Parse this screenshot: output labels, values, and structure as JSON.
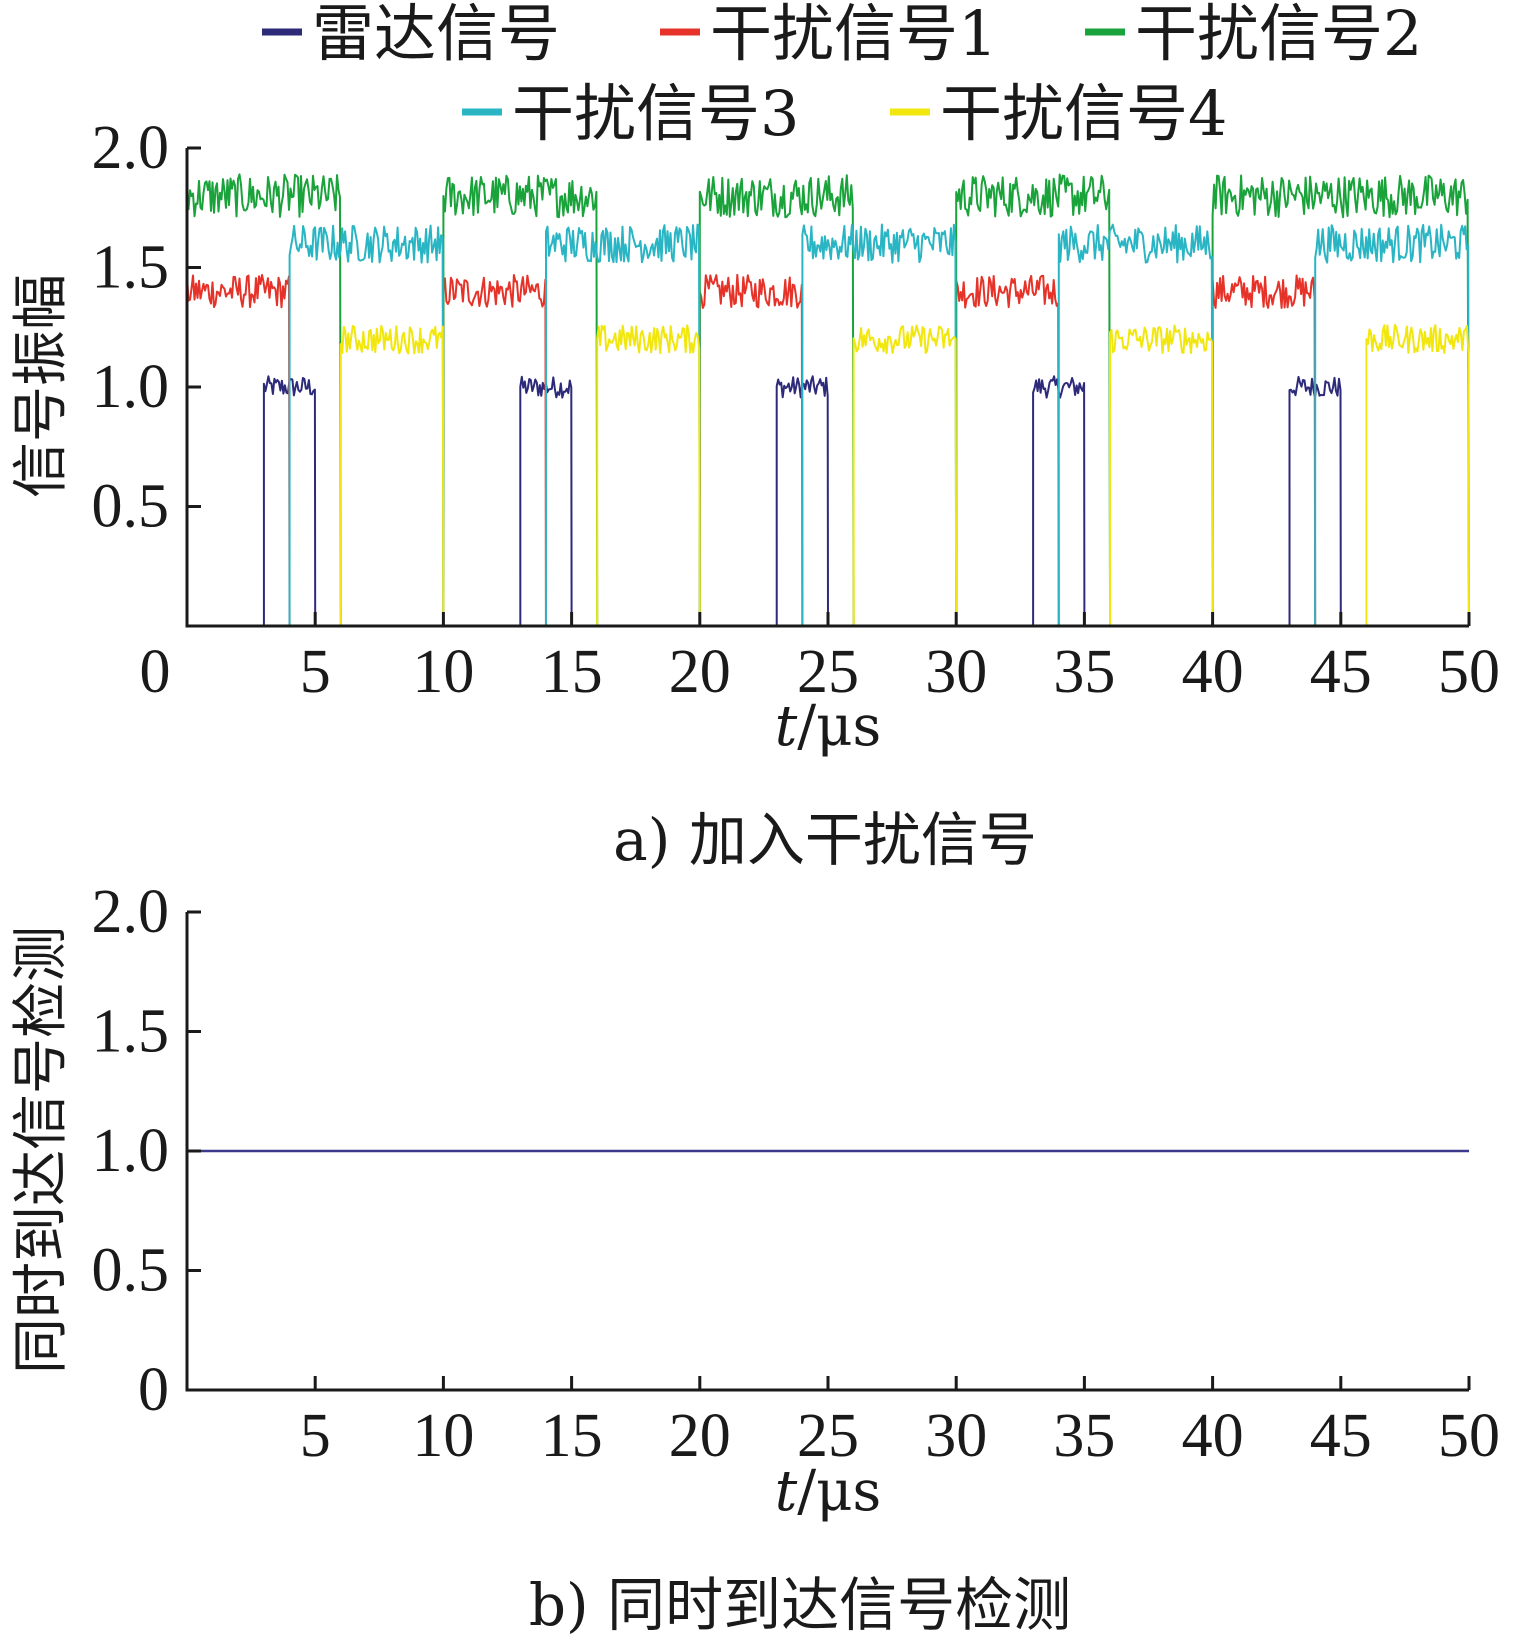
{
  "chart_data": [
    {
      "type": "line",
      "caption": "a) 加入干扰信号",
      "xlabel_italic": "t",
      "xlabel_unit": "/μs",
      "ylabel": "信号振幅",
      "xlim": [
        0,
        50
      ],
      "ylim": [
        0,
        2.0
      ],
      "x_ticks": [
        "0",
        "5",
        "10",
        "15",
        "20",
        "25",
        "30",
        "35",
        "40",
        "45",
        "50"
      ],
      "y_ticks": [
        "0.5",
        "1.0",
        "1.5",
        "2.0"
      ],
      "legend_position": "top",
      "series": [
        {
          "name": "雷达信号",
          "color": "#2e2a7a",
          "level": 1.0,
          "noise": 0.045,
          "pulses": [
            [
              3,
              5
            ],
            [
              13,
              15
            ],
            [
              23,
              25
            ],
            [
              33,
              35
            ],
            [
              43,
              45
            ]
          ]
        },
        {
          "name": "干扰信号1",
          "color": "#e63329",
          "level": 1.4,
          "noise": 0.07,
          "pulses": [
            [
              0,
              4
            ],
            [
              10,
              14
            ],
            [
              20,
              24
            ],
            [
              30,
              34
            ],
            [
              40,
              44
            ]
          ]
        },
        {
          "name": "干扰信号2",
          "color": "#19a33a",
          "level": 1.8,
          "noise": 0.09,
          "pulses": [
            [
              0,
              6
            ],
            [
              10,
              16
            ],
            [
              20,
              26
            ],
            [
              30,
              36
            ],
            [
              40,
              50
            ]
          ]
        },
        {
          "name": "干扰信号3",
          "color": "#2ab5c4",
          "level": 1.6,
          "noise": 0.08,
          "pulses": [
            [
              4,
              10
            ],
            [
              14,
              20
            ],
            [
              24,
              30
            ],
            [
              34,
              40
            ],
            [
              44,
              50
            ]
          ]
        },
        {
          "name": "干扰信号4",
          "color": "#f2e60f",
          "level": 1.2,
          "noise": 0.06,
          "pulses": [
            [
              6,
              10
            ],
            [
              16,
              20
            ],
            [
              26,
              30
            ],
            [
              36,
              40
            ],
            [
              46,
              50
            ]
          ]
        }
      ]
    },
    {
      "type": "line",
      "caption": "b) 同时到达信号检测",
      "xlabel_italic": "t",
      "xlabel_unit": "/μs",
      "ylabel": "同时到达信号检测",
      "xlim": [
        0,
        50
      ],
      "ylim": [
        0,
        2.0
      ],
      "x_ticks": [
        "5",
        "10",
        "15",
        "20",
        "25",
        "30",
        "35",
        "40",
        "45",
        "50"
      ],
      "y_ticks": [
        "0",
        "0.5",
        "1.0",
        "1.5",
        "2.0"
      ],
      "series": [
        {
          "color": "#3b3a8a",
          "x": [
            0,
            50
          ],
          "y": [
            1.0,
            1.0
          ]
        }
      ]
    }
  ]
}
